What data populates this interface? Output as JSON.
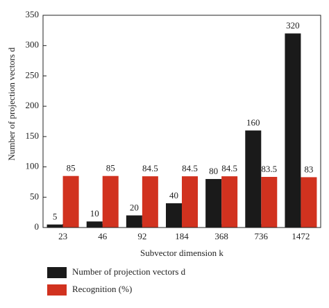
{
  "chart_data": {
    "type": "bar",
    "x_label": "Subvector dimension k",
    "y_label": "Number of projection vectors d",
    "categories": [
      "23",
      "46",
      "92",
      "184",
      "368",
      "736",
      "1472"
    ],
    "series": [
      {
        "name": "Number of projection vectors d",
        "color": "#1a1a1a",
        "values": [
          5,
          10,
          20,
          40,
          80,
          160,
          320
        ]
      },
      {
        "name": "Recognition (%)",
        "color": "#d1321f",
        "values": [
          85,
          85,
          84.5,
          84.5,
          84.5,
          83.5,
          83
        ]
      }
    ],
    "ylim": [
      0,
      350
    ],
    "yticks": [
      0,
      50,
      100,
      150,
      200,
      250,
      300,
      350
    ],
    "data_labels": true,
    "legend": "bottom"
  }
}
